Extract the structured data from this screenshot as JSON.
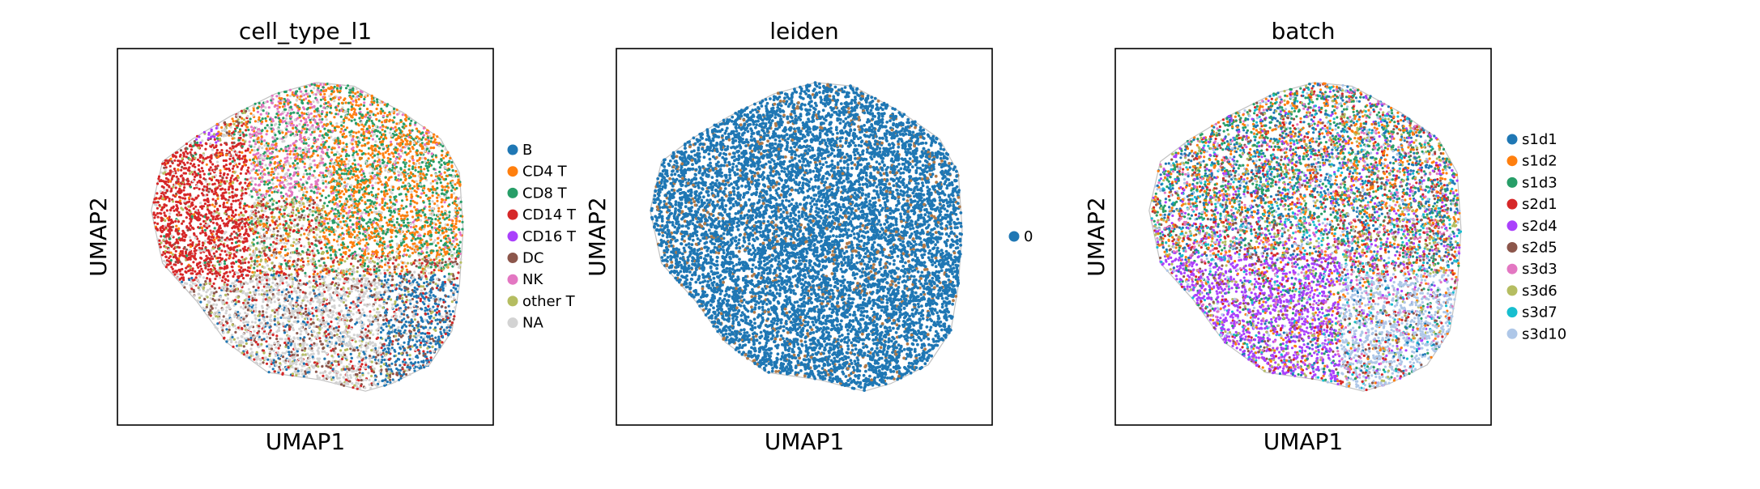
{
  "chart_data": [
    {
      "type": "scatter",
      "title": "cell_type_l1",
      "xlabel": "UMAP1",
      "ylabel": "UMAP2",
      "grid": false,
      "ticks": false,
      "legend_placement": "right",
      "series": [
        {
          "name": "B",
          "color": "#1f77b4"
        },
        {
          "name": "CD4 T",
          "color": "#ff7f0e"
        },
        {
          "name": "CD8 T",
          "color": "#279e68"
        },
        {
          "name": "CD14 T",
          "color": "#d62728"
        },
        {
          "name": "CD16 T",
          "color": "#aa40fc"
        },
        {
          "name": "DC",
          "color": "#8c564b"
        },
        {
          "name": "NK",
          "color": "#e377c2"
        },
        {
          "name": "other T",
          "color": "#b5bd61"
        },
        {
          "name": "NA",
          "color": "#d3d3d3"
        }
      ]
    },
    {
      "type": "scatter",
      "title": "leiden",
      "xlabel": "UMAP1",
      "ylabel": "UMAP2",
      "grid": false,
      "ticks": false,
      "legend_placement": "right",
      "series": [
        {
          "name": "0",
          "color": "#1f77b4"
        }
      ]
    },
    {
      "type": "scatter",
      "title": "batch",
      "xlabel": "UMAP1",
      "ylabel": "UMAP2",
      "grid": false,
      "ticks": false,
      "legend_placement": "right",
      "series": [
        {
          "name": "s1d1",
          "color": "#1f77b4"
        },
        {
          "name": "s1d2",
          "color": "#ff7f0e"
        },
        {
          "name": "s1d3",
          "color": "#279e68"
        },
        {
          "name": "s2d1",
          "color": "#d62728"
        },
        {
          "name": "s2d4",
          "color": "#aa40fc"
        },
        {
          "name": "s2d5",
          "color": "#8c564b"
        },
        {
          "name": "s3d3",
          "color": "#e377c2"
        },
        {
          "name": "s3d6",
          "color": "#b5bd61"
        },
        {
          "name": "s3d7",
          "color": "#17becf"
        },
        {
          "name": "s3d10",
          "color": "#aec7e8"
        }
      ]
    }
  ]
}
